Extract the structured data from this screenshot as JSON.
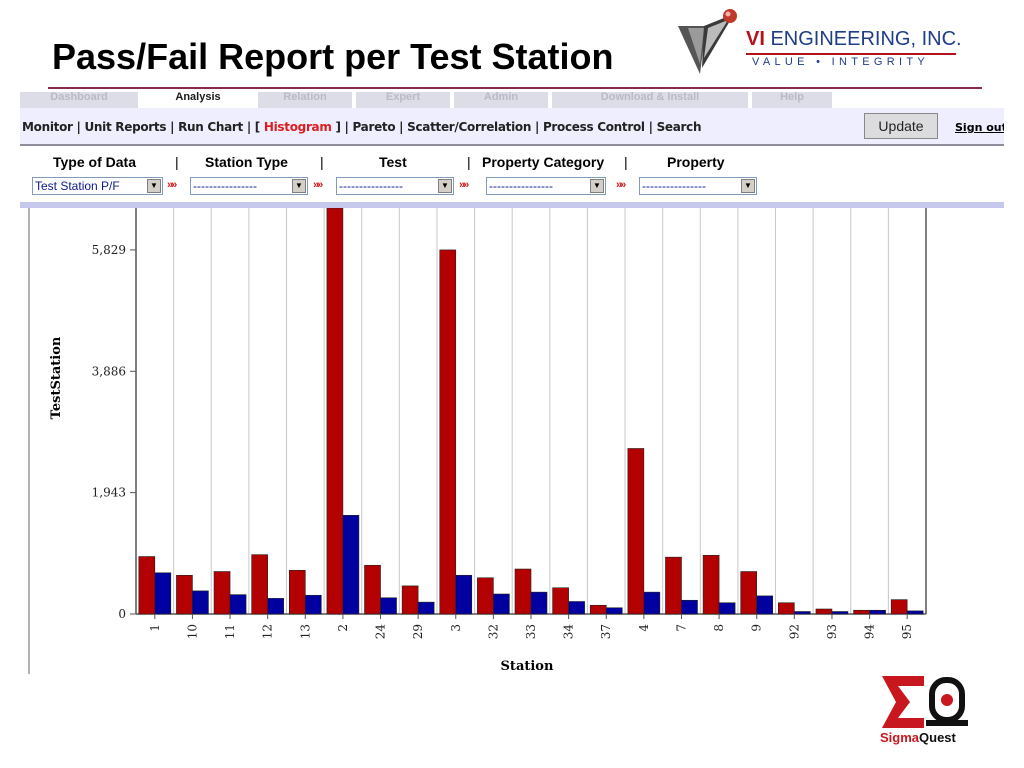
{
  "slide": {
    "title": "Pass/Fail Report per Test Station"
  },
  "vi_logo": {
    "name_prefix": "VI",
    "name_rest": " ENGINEERING, INC.",
    "tagline": "VALUE • INTEGRITY"
  },
  "app": {
    "tabs": [
      "Dashboard",
      "Analysis",
      "Relation",
      "Expert",
      "Admin",
      "Download & Install",
      "Help"
    ],
    "active_tab": "Analysis",
    "nav": {
      "links": [
        {
          "label": "Monitor",
          "active": false
        },
        {
          "label": "Unit Reports",
          "active": false
        },
        {
          "label": "Run Chart",
          "active": false
        },
        {
          "label": "Histogram",
          "active": true
        },
        {
          "label": "Pareto",
          "active": false
        },
        {
          "label": "Scatter/Correlation",
          "active": false
        },
        {
          "label": "Process Control",
          "active": false
        },
        {
          "label": "Search",
          "active": false
        }
      ],
      "update_label": "Update",
      "signout_label": "Sign out"
    },
    "filters": {
      "type_of_data_label": "Type of Data",
      "station_type_label": "Station Type",
      "test_label": "Test",
      "property_category_label": "Property Category",
      "property_label": "Property",
      "separator": "|",
      "chevron": "»»",
      "type_of_data_value": "Test Station P/F",
      "station_type_value": "----------------",
      "test_value": "----------------",
      "property_category_value": "----------------",
      "property_value": "----------------"
    }
  },
  "chart_data": {
    "type": "bar",
    "title": "",
    "xlabel": "Station",
    "ylabel": "TestStation",
    "ylim": [
      0,
      6500
    ],
    "yticks": [
      0,
      1943,
      3886,
      5829
    ],
    "ytick_labels": [
      "0",
      "1,943",
      "3,886",
      "5,829"
    ],
    "categories": [
      "1",
      "10",
      "11",
      "12",
      "13",
      "2",
      "24",
      "29",
      "3",
      "32",
      "33",
      "34",
      "37",
      "4",
      "7",
      "8",
      "9",
      "92",
      "93",
      "94",
      "95"
    ],
    "series": [
      {
        "color": "#b30000",
        "values": [
          920,
          620,
          680,
          950,
          700,
          6500,
          780,
          450,
          5829,
          580,
          720,
          420,
          140,
          2650,
          910,
          940,
          680,
          180,
          80,
          60,
          230
        ]
      },
      {
        "color": "#0000a0",
        "values": [
          660,
          370,
          310,
          250,
          300,
          1580,
          260,
          190,
          620,
          320,
          350,
          200,
          100,
          350,
          220,
          180,
          290,
          40,
          40,
          60,
          50
        ]
      }
    ],
    "grid": true,
    "legend": "none"
  },
  "sigmaquest": {
    "part1": "Sigma",
    "part2": "Quest"
  }
}
